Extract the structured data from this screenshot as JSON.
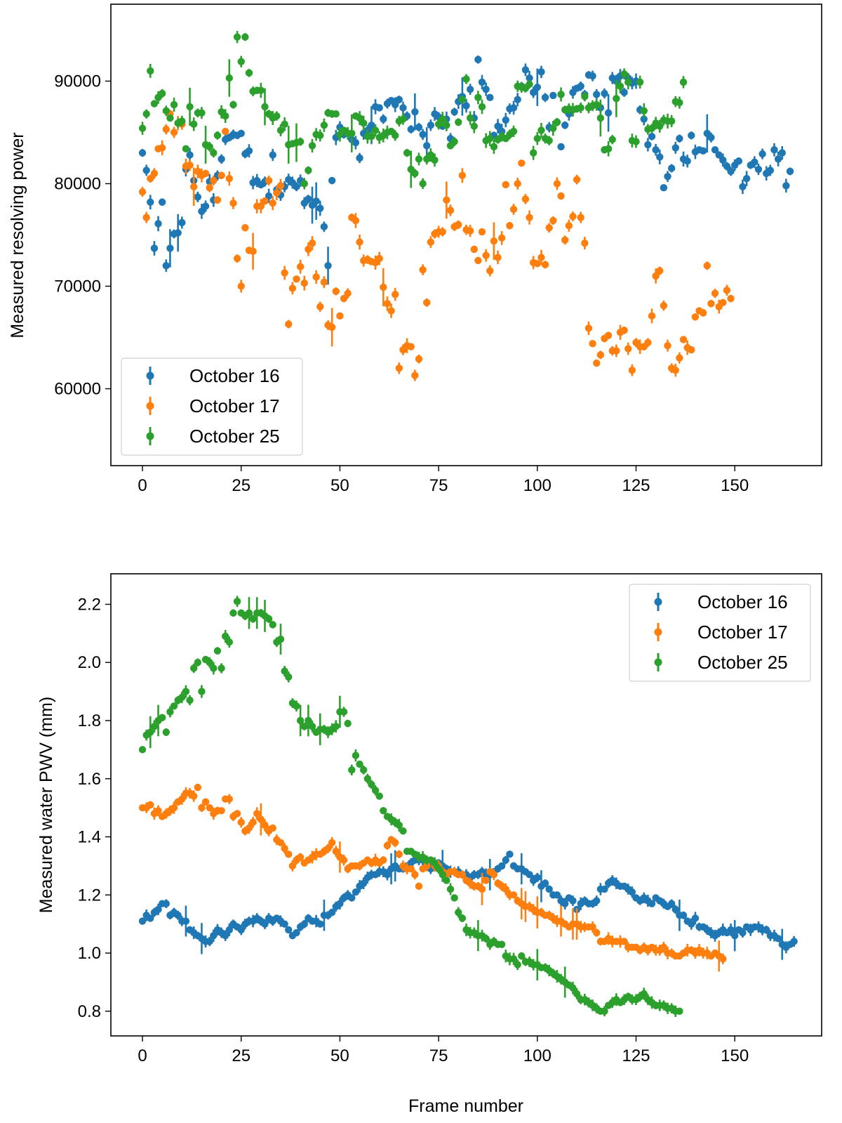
{
  "chart_data": [
    {
      "type": "scatter",
      "title": "",
      "xlabel": "",
      "ylabel": "Measured resolving power",
      "xlim": [
        -8,
        172
      ],
      "ylim": [
        52500,
        97500
      ],
      "xticks": [
        0,
        25,
        50,
        75,
        100,
        125,
        150
      ],
      "xtick_labels": [
        "0",
        "25",
        "50",
        "75",
        "100",
        "125",
        "150"
      ],
      "yticks": [
        60000,
        70000,
        80000,
        90000
      ],
      "ytick_labels": [
        "60000",
        "70000",
        "80000",
        "90000"
      ],
      "legend_position": "lower-left",
      "error_bars": true,
      "series": [
        {
          "name": "October 16",
          "color": "#1f77b4",
          "values": [
            83000,
            81300,
            78200,
            73700,
            76100,
            78200,
            72000,
            73700,
            75100,
            75200,
            76200,
            81400,
            82800,
            80300,
            78700,
            77300,
            77800,
            80200,
            78400,
            80800,
            82400,
            84300,
            84500,
            84800,
            84700,
            84900,
            82900,
            83200,
            80100,
            80300,
            79900,
            80200,
            78800,
            82800,
            79400,
            78900,
            79700,
            80400,
            80100,
            79700,
            80300,
            78100,
            78500,
            77900,
            78300,
            77600,
            75800,
            72000,
            80300,
            84500,
            85500,
            84800,
            84900,
            84300,
            84000,
            82500,
            84900,
            85200,
            85700,
            87500,
            87400,
            86300,
            87800,
            88100,
            87700,
            88200,
            87400,
            86600,
            85300,
            87000,
            85500,
            84800,
            83700,
            85700,
            86800,
            86500,
            85600,
            86300,
            84400,
            87000,
            88000,
            88500,
            87600,
            89200,
            86400,
            92100,
            89900,
            89200,
            88400,
            84700,
            85600,
            85100,
            86200,
            87300,
            87400,
            88200,
            89500,
            91100,
            90300,
            88900,
            89400,
            90900,
            88400,
            85500,
            88600,
            86000,
            83600,
            85700,
            86800,
            88900,
            89300,
            89500,
            88700,
            90600,
            90500,
            88700,
            87400,
            88800,
            86900,
            90300,
            90000,
            90500,
            88900,
            90300,
            89800,
            90000,
            87200,
            86300,
            83800,
            84600,
            83300,
            82600,
            79600,
            80700,
            81500,
            83500,
            84400,
            82400,
            82200,
            84700,
            83100,
            83300,
            83200,
            84900,
            84500,
            83300,
            82800,
            82300,
            81700,
            81200,
            81800,
            82200,
            79700,
            80500,
            81800,
            82100,
            81400,
            82900,
            81000,
            81300,
            83300,
            82400,
            83000,
            79800,
            81200
          ]
        },
        {
          "name": "October 17",
          "color": "#ff7f0e",
          "values": [
            79200,
            76700,
            80500,
            81000,
            83400,
            83500,
            85300,
            86800,
            85000,
            85900,
            85800,
            81700,
            81800,
            79700,
            81200,
            80800,
            81000,
            79600,
            80300,
            78400,
            80800,
            85100,
            80500,
            78100,
            72700,
            70000,
            75700,
            73500,
            73400,
            77800,
            77800,
            78300,
            80300,
            78100,
            79100,
            79800,
            71300,
            66300,
            69800,
            70700,
            71900,
            70300,
            73600,
            74200,
            70900,
            68000,
            70400,
            66200,
            66000,
            69500,
            67100,
            68800,
            69300,
            76700,
            76400,
            74300,
            72500,
            72600,
            72400,
            72300,
            72700,
            69900,
            68300,
            67600,
            69200,
            62000,
            63800,
            64200,
            64100,
            61300,
            62900,
            71600,
            68400,
            74300,
            75100,
            75300,
            75300,
            78400,
            77400,
            75800,
            76000,
            80800,
            75500,
            75400,
            73600,
            72500,
            75300,
            73000,
            71500,
            74400,
            72800,
            74700,
            79900,
            75900,
            77500,
            80000,
            82000,
            78500,
            76700,
            72300,
            72200,
            72800,
            72100,
            75700,
            76400,
            80000,
            78800,
            74500,
            75900,
            76800,
            80400,
            76700,
            74200,
            65900,
            64400,
            62500,
            63300,
            64900,
            65200,
            63700,
            63700,
            65500,
            65700,
            63900,
            61800,
            64500,
            64100,
            64100,
            64500,
            67100,
            71000,
            71500,
            68100,
            64200,
            62000,
            61800,
            63000,
            64800,
            64000,
            63800,
            67000,
            67600,
            67400,
            72000,
            68300,
            69300,
            68000,
            68400,
            69600,
            68800
          ]
        },
        {
          "name": "October 25",
          "color": "#2ca02c",
          "values": [
            85400,
            86800,
            91000,
            87800,
            88400,
            88800,
            87100,
            86400,
            87700,
            85900,
            86100,
            83400,
            87500,
            85800,
            86900,
            86900,
            83800,
            83600,
            83000,
            84700,
            87000,
            86600,
            90300,
            87700,
            94300,
            91900,
            94300,
            90800,
            89000,
            89100,
            89100,
            87500,
            86800,
            86400,
            86600,
            85200,
            85800,
            83800,
            83900,
            84000,
            84100,
            80000,
            81300,
            83700,
            84800,
            84700,
            85700,
            86900,
            86800,
            86800,
            84800,
            85200,
            84900,
            84900,
            86600,
            86400,
            85900,
            84600,
            84600,
            85200,
            84500,
            84700,
            85000,
            85100,
            84700,
            86100,
            86300,
            83000,
            81400,
            81000,
            82400,
            80000,
            82400,
            82800,
            82300,
            85800,
            86300,
            85700,
            83700,
            84100,
            86000,
            88200,
            90200,
            86400,
            85600,
            88400,
            87500,
            84200,
            84400,
            83600,
            84300,
            84600,
            84400,
            84800,
            85100,
            89500,
            89400,
            89300,
            89700,
            83000,
            84400,
            85200,
            84400,
            84200,
            85400,
            86000,
            88700,
            87200,
            87300,
            87200,
            87300,
            87400,
            88500,
            87400,
            87600,
            87700,
            86400,
            83300,
            83400,
            84300,
            88300,
            89500,
            90700,
            89900,
            84200,
            84100,
            89900,
            87100,
            85300,
            85400,
            85900,
            85600,
            86200,
            86100,
            86100,
            88000,
            87900,
            89900
          ]
        }
      ]
    },
    {
      "type": "scatter",
      "title": "",
      "xlabel": "Frame number",
      "ylabel": "Measured water PWV (mm)",
      "xlim": [
        -8,
        172
      ],
      "ylim": [
        0.715,
        2.305
      ],
      "xticks": [
        0,
        25,
        50,
        75,
        100,
        125,
        150
      ],
      "xtick_labels": [
        "0",
        "25",
        "50",
        "75",
        "100",
        "125",
        "150"
      ],
      "yticks": [
        0.8,
        1.0,
        1.2,
        1.4,
        1.6,
        1.8,
        2.0,
        2.2
      ],
      "ytick_labels": [
        "0.8",
        "1.0",
        "1.2",
        "1.4",
        "1.6",
        "1.8",
        "2.0",
        "2.2"
      ],
      "legend_position": "top-right",
      "error_bars": true,
      "series": [
        {
          "name": "October 16",
          "color": "#1f77b4",
          "values": [
            1.11,
            1.13,
            1.12,
            1.14,
            1.15,
            1.17,
            1.17,
            1.13,
            1.14,
            1.13,
            1.11,
            1.11,
            1.08,
            1.07,
            1.06,
            1.05,
            1.04,
            1.04,
            1.06,
            1.08,
            1.07,
            1.06,
            1.08,
            1.1,
            1.09,
            1.08,
            1.1,
            1.11,
            1.11,
            1.12,
            1.11,
            1.1,
            1.12,
            1.11,
            1.12,
            1.11,
            1.1,
            1.08,
            1.06,
            1.07,
            1.09,
            1.1,
            1.12,
            1.11,
            1.11,
            1.1,
            1.13,
            1.13,
            1.14,
            1.16,
            1.17,
            1.19,
            1.2,
            1.19,
            1.21,
            1.23,
            1.24,
            1.26,
            1.27,
            1.27,
            1.28,
            1.28,
            1.27,
            1.29,
            1.3,
            1.29,
            1.29,
            1.3,
            1.31,
            1.32,
            1.32,
            1.32,
            1.3,
            1.29,
            1.31,
            1.31,
            1.3,
            1.29,
            1.28,
            1.28,
            1.28,
            1.27,
            1.27,
            1.26,
            1.27,
            1.27,
            1.28,
            1.27,
            1.27,
            1.28,
            1.29,
            1.3,
            1.32,
            1.34,
            1.3,
            1.29,
            1.29,
            1.28,
            1.27,
            1.25,
            1.26,
            1.23,
            1.24,
            1.22,
            1.2,
            1.2,
            1.18,
            1.17,
            1.19,
            1.18,
            1.15,
            1.17,
            1.18,
            1.17,
            1.17,
            1.18,
            1.22,
            1.22,
            1.24,
            1.25,
            1.24,
            1.23,
            1.23,
            1.22,
            1.21,
            1.19,
            1.18,
            1.19,
            1.18,
            1.17,
            1.19,
            1.18,
            1.17,
            1.16,
            1.17,
            1.15,
            1.13,
            1.13,
            1.11,
            1.1,
            1.12,
            1.09,
            1.09,
            1.08,
            1.07,
            1.06,
            1.07,
            1.08,
            1.07,
            1.08,
            1.06,
            1.08,
            1.07,
            1.09,
            1.08,
            1.09,
            1.09,
            1.08,
            1.08,
            1.06,
            1.06,
            1.05,
            1.03,
            1.02,
            1.03,
            1.04
          ]
        },
        {
          "name": "October 17",
          "color": "#ff7f0e",
          "values": [
            1.5,
            1.5,
            1.51,
            1.48,
            1.49,
            1.47,
            1.48,
            1.49,
            1.5,
            1.52,
            1.53,
            1.55,
            1.55,
            1.54,
            1.57,
            1.5,
            1.52,
            1.5,
            1.48,
            1.49,
            1.49,
            1.53,
            1.53,
            1.47,
            1.48,
            1.45,
            1.42,
            1.43,
            1.45,
            1.48,
            1.46,
            1.44,
            1.42,
            1.43,
            1.39,
            1.38,
            1.36,
            1.34,
            1.3,
            1.32,
            1.33,
            1.31,
            1.32,
            1.33,
            1.34,
            1.34,
            1.35,
            1.36,
            1.38,
            1.35,
            1.33,
            1.32,
            1.29,
            1.3,
            1.3,
            1.3,
            1.31,
            1.32,
            1.31,
            1.32,
            1.31,
            1.32,
            1.37,
            1.39,
            1.38,
            1.34,
            1.3,
            1.29,
            1.29,
            1.27,
            1.23,
            1.29,
            1.3,
            1.32,
            1.3,
            1.3,
            1.28,
            1.27,
            1.28,
            1.28,
            1.27,
            1.27,
            1.25,
            1.24,
            1.23,
            1.23,
            1.22,
            1.25,
            1.28,
            1.27,
            1.24,
            1.23,
            1.22,
            1.2,
            1.2,
            1.18,
            1.17,
            1.16,
            1.16,
            1.15,
            1.14,
            1.14,
            1.13,
            1.13,
            1.12,
            1.11,
            1.11,
            1.1,
            1.09,
            1.1,
            1.1,
            1.09,
            1.09,
            1.09,
            1.09,
            1.07,
            1.04,
            1.04,
            1.05,
            1.04,
            1.04,
            1.04,
            1.04,
            1.02,
            1.02,
            1.02,
            1.01,
            1.02,
            1.01,
            1.02,
            1.01,
            1.01,
            1.02,
            1.0,
            1.0,
            0.99,
            0.99,
            1.0,
            1.01,
            1.01,
            1.0,
            1.01,
            1.0,
            1.0,
            0.99,
            1.0,
            0.99,
            0.98
          ]
        },
        {
          "name": "October 25",
          "color": "#2ca02c",
          "values": [
            1.7,
            1.75,
            1.76,
            1.78,
            1.8,
            1.81,
            1.76,
            1.83,
            1.85,
            1.87,
            1.88,
            1.9,
            1.87,
            1.98,
            2.0,
            1.9,
            2.01,
            2.0,
            1.98,
            2.04,
            1.98,
            2.09,
            2.07,
            2.17,
            2.21,
            2.17,
            2.16,
            2.17,
            2.15,
            2.17,
            2.17,
            2.16,
            2.15,
            2.13,
            2.07,
            2.08,
            1.97,
            1.95,
            1.86,
            1.85,
            1.8,
            1.78,
            1.8,
            1.78,
            1.76,
            1.77,
            1.77,
            1.76,
            1.77,
            1.78,
            1.83,
            1.83,
            1.79,
            1.63,
            1.68,
            1.65,
            1.63,
            1.6,
            1.58,
            1.56,
            1.54,
            1.49,
            1.47,
            1.46,
            1.45,
            1.44,
            1.42,
            1.35,
            1.35,
            1.34,
            1.33,
            1.33,
            1.32,
            1.32,
            1.31,
            1.29,
            1.27,
            1.25,
            1.22,
            1.19,
            1.14,
            1.12,
            1.08,
            1.07,
            1.07,
            1.06,
            1.06,
            1.05,
            1.03,
            1.04,
            1.03,
            1.03,
            0.99,
            0.98,
            0.98,
            0.96,
            0.99,
            0.97,
            0.97,
            0.96,
            0.96,
            0.95,
            0.95,
            0.94,
            0.93,
            0.92,
            0.91,
            0.9,
            0.89,
            0.88,
            0.86,
            0.84,
            0.84,
            0.83,
            0.82,
            0.81,
            0.8,
            0.8,
            0.82,
            0.83,
            0.84,
            0.83,
            0.84,
            0.85,
            0.84,
            0.84,
            0.85,
            0.86,
            0.84,
            0.83,
            0.82,
            0.82,
            0.82,
            0.81,
            0.81,
            0.8,
            0.8
          ]
        }
      ]
    }
  ]
}
